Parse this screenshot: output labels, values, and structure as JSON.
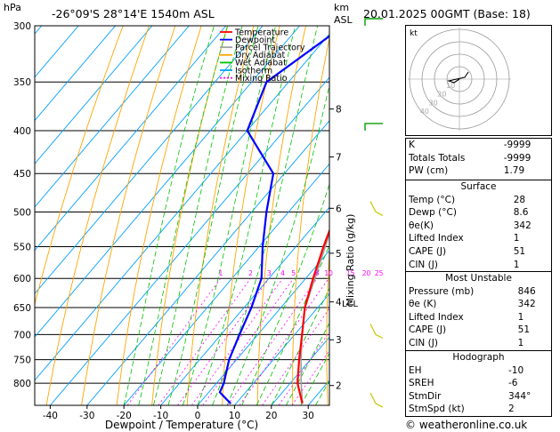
{
  "header": {
    "pressure_unit": "hPa",
    "location": "-26°09'S  28°14'E  1540m  ASL",
    "km_label": "km",
    "asl_label": "ASL",
    "datetime": "20.01.2025  00GMT  (Base: 18)"
  },
  "footer": {
    "credit": "© weatheronline.co.uk"
  },
  "colors": {
    "temperature": "#ff0000",
    "dewpoint": "#0000ff",
    "parcel": "#a0a0a0",
    "dry_adiabat": "#ffa500",
    "wet_adiabat": "#00c000",
    "isotherm": "#00a0ff",
    "mixing_ratio": "#ff00ff",
    "wind_barb": "#00a000",
    "wind_barb_low": "#c8c800"
  },
  "chart_data": {
    "type": "line",
    "subtype": "skew-T log-P diagram",
    "xlabel": "Dewpoint / Temperature (°C)",
    "ylabel_right": "Mixing Ratio (g/kg)",
    "x_ticks": [
      -40,
      -30,
      -20,
      -10,
      0,
      10,
      20,
      30
    ],
    "pressure_levels": [
      300,
      350,
      400,
      450,
      500,
      550,
      600,
      650,
      700,
      750,
      800
    ],
    "km_ticks": [
      {
        "km": "8",
        "p": 377
      },
      {
        "km": "7",
        "p": 430
      },
      {
        "km": "6",
        "p": 495
      },
      {
        "km": "5",
        "p": 560
      },
      {
        "km": "4",
        "p": 640
      },
      {
        "km": "3",
        "p": 710
      },
      {
        "km": "2",
        "p": 805
      }
    ],
    "lcl": {
      "label": "LCL",
      "p": 642
    },
    "mixing_ratio_labels": [
      "1",
      "2",
      "3",
      "4",
      "5",
      "8",
      "10",
      "15",
      "20",
      "25"
    ],
    "mixing_ratio_values": [
      1,
      2,
      3,
      4,
      5,
      8,
      10,
      15,
      20,
      25
    ],
    "legend": [
      "Temperature",
      "Dewpoint",
      "Parcel Trajectory",
      "Dry Adiabat",
      "Wet Adiabat",
      "Isotherm",
      "Mixing Ratio"
    ],
    "series": [
      {
        "name": "Temperature",
        "p": [
          846,
          800,
          750,
          700,
          650,
          600,
          550,
          500,
          450,
          400,
          350,
          300
        ],
        "t": [
          28,
          22,
          17,
          12,
          6.5,
          2,
          -2.5,
          -7,
          -13,
          -21,
          -30,
          -42
        ]
      },
      {
        "name": "Dewpoint",
        "p": [
          846,
          820,
          800,
          750,
          700,
          650,
          600,
          550,
          500,
          450,
          400,
          350,
          300
        ],
        "t": [
          8.6,
          3,
          2,
          -2,
          -5,
          -8,
          -12,
          -19,
          -26,
          -33,
          -50,
          -56,
          -48
        ]
      },
      {
        "name": "Parcel Trajectory",
        "p": [
          846,
          800,
          750,
          700,
          650,
          642,
          600,
          550,
          500,
          450,
          400,
          350,
          300
        ],
        "t": [
          28,
          23,
          17.5,
          12,
          6.5,
          6,
          2.5,
          -2,
          -7,
          -13,
          -20,
          -29,
          -41
        ]
      }
    ],
    "wind_barbs": [
      {
        "p": 300,
        "type": "green"
      },
      {
        "p": 400,
        "type": "green"
      },
      {
        "p": 500,
        "type": "yellow"
      },
      {
        "p": 700,
        "type": "yellow"
      },
      {
        "p": 846,
        "type": "yellow"
      }
    ],
    "hodograph": {
      "label": "kt",
      "ring_labels": [
        "10",
        "20",
        "30",
        "40"
      ],
      "trace": [
        [
          0,
          0
        ],
        [
          -3,
          -2
        ],
        [
          -6,
          -1
        ],
        [
          3,
          1
        ],
        [
          5,
          4
        ]
      ]
    }
  },
  "indices": [
    {
      "label": "K",
      "value": "-9999"
    },
    {
      "label": "Totals Totals",
      "value": "-9999"
    },
    {
      "label": "PW (cm)",
      "value": "1.79"
    }
  ],
  "surface": {
    "title": "Surface",
    "rows": [
      {
        "label": "Temp (°C)",
        "value": "28"
      },
      {
        "label": "Dewp (°C)",
        "value": "8.6"
      },
      {
        "label": "θe(K)",
        "value": "342"
      },
      {
        "label": "Lifted Index",
        "value": "1"
      },
      {
        "label": "CAPE (J)",
        "value": "51"
      },
      {
        "label": "CIN (J)",
        "value": "1"
      }
    ]
  },
  "most_unstable": {
    "title": "Most Unstable",
    "rows": [
      {
        "label": "Pressure (mb)",
        "value": "846"
      },
      {
        "label": "θe (K)",
        "value": "342"
      },
      {
        "label": "Lifted Index",
        "value": "1"
      },
      {
        "label": "CAPE (J)",
        "value": "51"
      },
      {
        "label": "CIN (J)",
        "value": "1"
      }
    ]
  },
  "hodograph_table": {
    "title": "Hodograph",
    "rows": [
      {
        "label": "EH",
        "value": "-10"
      },
      {
        "label": "SREH",
        "value": "-6"
      },
      {
        "label": "StmDir",
        "value": "344°"
      },
      {
        "label": "StmSpd (kt)",
        "value": "2"
      }
    ]
  }
}
